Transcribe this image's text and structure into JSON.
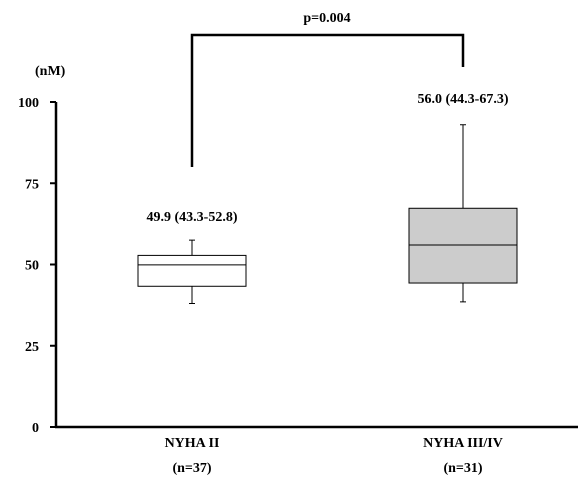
{
  "chart_data": {
    "type": "box",
    "unit_label": "(nM)",
    "y_range": [
      0,
      100
    ],
    "y_ticks": [
      0,
      25,
      50,
      75,
      100
    ],
    "groups": [
      {
        "name": "NYHA II",
        "n_label": "(n=37)",
        "summary_label": "49.9 (43.3-52.8)",
        "median": 49.9,
        "q1": 43.3,
        "q3": 52.8,
        "whisker_low": 38.0,
        "whisker_high": 57.5,
        "fill": "#ffffff"
      },
      {
        "name": "NYHA III/IV",
        "n_label": "(n=31)",
        "summary_label": "56.0 (44.3-67.3)",
        "median": 56.0,
        "q1": 44.3,
        "q3": 67.3,
        "whisker_low": 38.5,
        "whisker_high": 93.0,
        "fill": "#cccccc"
      }
    ],
    "comparison": {
      "label": "p=0.004"
    }
  }
}
